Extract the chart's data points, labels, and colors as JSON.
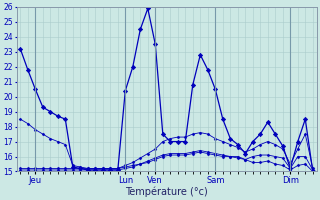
{
  "background_color": "#cce8e4",
  "grid_color": "#aacccc",
  "line_color": "#0000bb",
  "marker_color": "#0000bb",
  "xlabel": "Température (°c)",
  "ylim": [
    15,
    26
  ],
  "yticks": [
    15,
    16,
    17,
    18,
    19,
    20,
    21,
    22,
    23,
    24,
    25,
    26
  ],
  "x_day_labels": [
    "Jeu",
    "Lun",
    "Ven",
    "Sam",
    "Dim"
  ],
  "x_day_positions": [
    2,
    14,
    18,
    26,
    36
  ],
  "n_total": 40,
  "series": [
    [
      23.2,
      21.8,
      20.5,
      19.3,
      19.0,
      18.7,
      18.5,
      15.3,
      15.2,
      15.1,
      15.1,
      15.1,
      15.1,
      15.1,
      20.4,
      22.0,
      24.5,
      25.9,
      23.5,
      17.5,
      17.0,
      17.0,
      17.0,
      20.8,
      22.8,
      21.8,
      20.5,
      18.5,
      17.2,
      16.8,
      16.2,
      17.0,
      17.5,
      18.3,
      17.5,
      16.7,
      15.2,
      17.0,
      18.5,
      15.0
    ],
    [
      18.5,
      18.2,
      17.8,
      17.5,
      17.2,
      17.0,
      16.8,
      15.4,
      15.3,
      15.2,
      15.2,
      15.2,
      15.2,
      15.2,
      15.4,
      15.6,
      15.9,
      16.2,
      16.5,
      17.0,
      17.2,
      17.3,
      17.3,
      17.5,
      17.6,
      17.5,
      17.2,
      17.0,
      16.8,
      16.6,
      16.3,
      16.5,
      16.8,
      17.0,
      16.8,
      16.5,
      15.5,
      16.5,
      17.5,
      15.2
    ],
    [
      15.2,
      15.2,
      15.2,
      15.2,
      15.2,
      15.2,
      15.2,
      15.2,
      15.2,
      15.2,
      15.2,
      15.2,
      15.2,
      15.2,
      15.3,
      15.4,
      15.5,
      15.6,
      15.8,
      16.0,
      16.1,
      16.1,
      16.1,
      16.2,
      16.3,
      16.2,
      16.1,
      16.0,
      16.0,
      15.9,
      15.8,
      16.0,
      16.1,
      16.1,
      16.0,
      15.9,
      15.2,
      16.0,
      16.0,
      15.1
    ],
    [
      15.1,
      15.1,
      15.1,
      15.1,
      15.1,
      15.1,
      15.1,
      15.1,
      15.1,
      15.1,
      15.1,
      15.1,
      15.1,
      15.1,
      15.2,
      15.3,
      15.5,
      15.7,
      15.9,
      16.1,
      16.2,
      16.2,
      16.2,
      16.3,
      16.4,
      16.3,
      16.2,
      16.1,
      16.0,
      16.0,
      15.8,
      15.6,
      15.6,
      15.7,
      15.5,
      15.4,
      15.1,
      15.4,
      15.5,
      15.0
    ]
  ],
  "figsize": [
    3.2,
    2.0
  ],
  "dpi": 100
}
